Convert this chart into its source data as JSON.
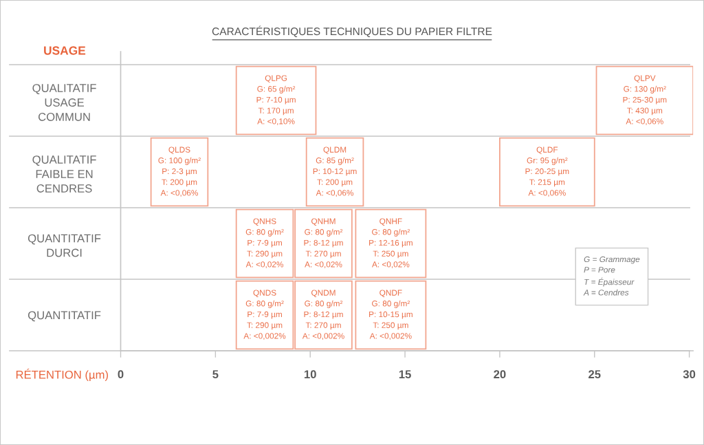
{
  "chart_data": {
    "type": "bar",
    "orientation": "horizontal",
    "title": "CARACTÉRISTIQUES TECHNIQUES DU PAPIER FILTRE",
    "xlabel": "RÉTENTION (µm)",
    "ylabel": "USAGE",
    "categories": [
      "QUALITATIF\nUSAGE\nCOMMUN",
      "QUALITATIF\nFAIBLE EN\nCENDRES",
      "QUANTITATIF\nDURCI",
      "QUANTITATIF"
    ],
    "series": [
      {
        "color": "#f2a58e",
        "base": [
          6.1,
          1.6,
          6.1,
          6.1
        ],
        "values": [
          4.2,
          3.0,
          3.0,
          3.0
        ]
      },
      {
        "color": "#f2a58e",
        "base": [
          25.1,
          9.8,
          9.2,
          9.2
        ],
        "values": [
          5.1,
          3.0,
          3.0,
          3.0
        ]
      },
      {
        "color": "#f2a58e",
        "base": [
          null,
          20.0,
          12.4,
          12.4
        ],
        "values": [
          null,
          5.0,
          3.7,
          3.7
        ]
      }
    ],
    "xlim": [
      0,
      30.2
    ],
    "xticks": [
      0,
      5,
      10,
      15,
      20,
      25,
      30
    ],
    "grid": "y",
    "annotations": [
      {
        "text": "QLPG\nG: 65 g/m²\nP: 7-10 µm\nT: 170 µm\nA: <0,10%",
        "x": 8.2,
        "y": "QUALITATIF\nUSAGE\nCOMMUN"
      },
      {
        "text": "QLPV\nG: 130 g/m²\nP: 25-30 µm\nT: 430 µm\nA: <0,06%",
        "x": 27.65,
        "y": "QUALITATIF\nUSAGE\nCOMMUN"
      },
      {
        "text": "QLDS\nG: 100 g/m²\nP: 2-3 µm\nT: 200 µm\nA: <0,06%",
        "x": 3.1,
        "y": "QUALITATIF\nFAIBLE EN\nCENDRES"
      },
      {
        "text": "QLDM\nG: 85 g/m²\nP: 10-12 µm\nT: 200 µm\nA: <0,06%",
        "x": 11.3,
        "y": "QUALITATIF\nFAIBLE EN\nCENDRES"
      },
      {
        "text": "QLDF\nGr: 95 g/m²\nP: 20-25 µm\nT: 215 µm\nA: <0,06%",
        "x": 22.5,
        "y": "QUALITATIF\nFAIBLE EN\nCENDRES"
      },
      {
        "text": "QNHS\nG: 80 g/m²\nP: 7-9 µm\nT: 290 µm\nA: <0,02%",
        "x": 7.6,
        "y": "QUANTITATIF\nDURCI"
      },
      {
        "text": "QNHM\nG: 80 g/m²\nP: 8-12 µm\nT: 270 µm\nA: <0,02%",
        "x": 10.7,
        "y": "QUANTITATIF\nDURCI"
      },
      {
        "text": "QNHF\nG: 80 g/m²\nP: 12-16 µm\nT: 250 µm\nA: <0,02%",
        "x": 14.25,
        "y": "QUANTITATIF\nDURCI"
      },
      {
        "text": "QNDS\nG: 80 g/m²\nP: 7-9 µm\nT: 290 µm\nA: <0,002%",
        "x": 7.6,
        "y": "QUANTITATIF"
      },
      {
        "text": "QNDM\nG: 80 g/m²\nP: 8-12 µm\nT: 270 µm\nA: <0,002%",
        "x": 10.7,
        "y": "QUANTITATIF"
      },
      {
        "text": "QNDF\nG: 80 g/m²\nP: 10-15 µm\nT: 250 µm\nA: <0,002%",
        "x": 14.25,
        "y": "QUANTITATIF"
      },
      "G = Grammage\nP = Pore\nT = Épaisseur\nA = Cendres"
    ]
  }
}
